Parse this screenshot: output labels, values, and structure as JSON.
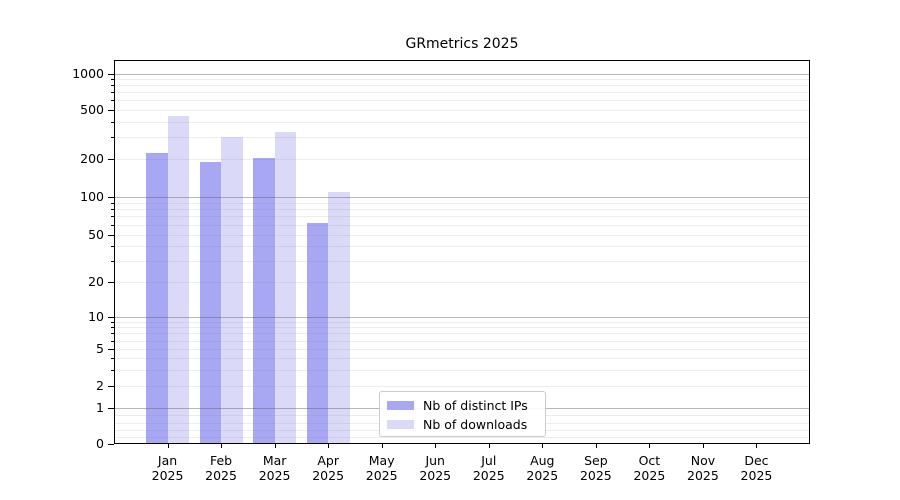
{
  "chart_data": {
    "type": "bar",
    "title": "GRmetrics 2025",
    "y_scale": "log",
    "y_ticks": [
      0,
      1,
      2,
      5,
      10,
      20,
      50,
      100,
      200,
      500,
      1000
    ],
    "ylim": [
      0,
      1300
    ],
    "categories": [
      "Jan",
      "Feb",
      "Mar",
      "Apr",
      "May",
      "Jun",
      "Jul",
      "Aug",
      "Sep",
      "Oct",
      "Nov",
      "Dec"
    ],
    "category_year": "2025",
    "series": [
      {
        "name": "Nb of distinct IPs",
        "color": "#a7a7f3",
        "values": [
          225,
          190,
          203,
          62,
          0,
          0,
          0,
          0,
          0,
          0,
          0,
          0
        ]
      },
      {
        "name": "Nb of downloads",
        "color": "#dadaf8",
        "values": [
          450,
          300,
          330,
          110,
          0,
          0,
          0,
          0,
          0,
          0,
          0,
          0
        ]
      }
    ],
    "legend": {
      "position": "inside-bottom-center",
      "entries": [
        "Nb of distinct IPs",
        "Nb of downloads"
      ]
    },
    "grid": {
      "major_line_values": [
        1,
        10,
        100,
        1000
      ],
      "minor_lines": true
    }
  }
}
